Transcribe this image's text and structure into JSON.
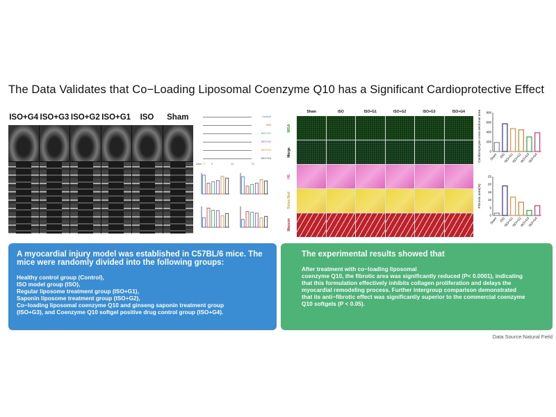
{
  "title": "The Data Validates that Co−Loading Liposomal Coenzyme Q10 has a Significant Cardioprotective Effect",
  "echo": {
    "labels": [
      "ISO+G4",
      "ISO+G3",
      "ISO+G2",
      "ISO+G1",
      "ISO",
      "Sham"
    ]
  },
  "timeline": {
    "rows": [
      {
        "label": "Control",
        "color": "#3a6fd8"
      },
      {
        "label": "ISO",
        "color": "#e03030"
      },
      {
        "label": "ISO+G1",
        "color": "#2aa060"
      },
      {
        "label": "ISO+G2",
        "color": "#8040c0"
      },
      {
        "label": "ISO+G3",
        "color": "#e08020"
      },
      {
        "label": "ISO+G4",
        "color": "#333333"
      }
    ],
    "days": [
      "Days",
      "-7",
      "0",
      "14",
      "21"
    ]
  },
  "histology": {
    "columns": [
      "Sham",
      "ISO",
      "ISO+G1",
      "ISO+G2",
      "ISO+G3",
      "ISO+G4"
    ],
    "rows": [
      {
        "label": "WGA",
        "color": "#2a9a2a",
        "cls": "wga"
      },
      {
        "label": "Merge",
        "color": "#111111",
        "cls": "merge"
      },
      {
        "label": "HE",
        "color": "#e040b0",
        "cls": "he"
      },
      {
        "label": "Sirius Red",
        "color": "#d0a020",
        "cls": "sr"
      },
      {
        "label": "Masson",
        "color": "#c02020",
        "cls": "ma"
      }
    ]
  },
  "chart_data": [
    {
      "type": "bar",
      "categories": [
        "Sham",
        "ISO",
        "ISO+G1",
        "ISO+G2",
        "ISO+G3",
        "ISO+G4"
      ],
      "values": [
        185,
        570,
        470,
        445,
        300,
        385
      ],
      "ylabel": "Cardiomyocyte cross-sectional area(μm²)",
      "ylim": [
        0,
        800
      ],
      "yticks": [
        "0",
        "200",
        "400",
        "600",
        "800"
      ],
      "colors": [
        "#888888",
        "#3030a0",
        "#e09040",
        "#d08030",
        "#30a040",
        "#e03070"
      ]
    },
    {
      "type": "bar",
      "categories": [
        "Sham",
        "ISO",
        "ISO+G1",
        "ISO+G2",
        "ISO+G3",
        "ISO+G4"
      ],
      "values": [
        1.5,
        19,
        11.8,
        8.5,
        3.2,
        6.3
      ],
      "ylabel": "Fibrosis area(%)",
      "ylim": [
        0,
        25
      ],
      "yticks": [
        "0",
        "5",
        "10",
        "15",
        "20",
        "25"
      ],
      "colors": [
        "#888888",
        "#3030a0",
        "#e09040",
        "#d08030",
        "#30a040",
        "#e03070"
      ]
    },
    {
      "type": "bar",
      "values": [
        90,
        52,
        58,
        64,
        84,
        76
      ],
      "ylim": [
        0,
        100
      ],
      "colors": [
        "#3a6fd8",
        "#e03030",
        "#2aa060",
        "#8040c0",
        "#e08020",
        "#333333"
      ]
    },
    {
      "type": "bar",
      "values": [
        58,
        26,
        32,
        36,
        48,
        44
      ],
      "ylim": [
        0,
        70
      ],
      "colors": [
        "#3a6fd8",
        "#e03030",
        "#2aa060",
        "#8040c0",
        "#e08020",
        "#333333"
      ]
    },
    {
      "type": "bar",
      "values": [
        2.3,
        4.6,
        4.1,
        4.0,
        2.8,
        3.3
      ],
      "ylim": [
        0,
        5
      ],
      "colors": [
        "#3a6fd8",
        "#e03030",
        "#2aa060",
        "#8040c0",
        "#e08020",
        "#333333"
      ]
    },
    {
      "type": "bar",
      "values": [
        1.5,
        3.0,
        2.9,
        2.7,
        1.8,
        2.1
      ],
      "ylim": [
        0,
        4
      ],
      "colors": [
        "#3a6fd8",
        "#e03030",
        "#2aa060",
        "#8040c0",
        "#e08020",
        "#333333"
      ]
    }
  ],
  "left_box": {
    "heading": "A myocardial injury model was established in C57BL/6 mice. The mice were randomly divided into the following groups:",
    "body": "Healthy control group (Control),\nISO model group (ISO),\nRegular liposome treatment group (ISO+G1),\nSaponin liposome treatment group (ISO+G2),\nCo−loading liposomal coenzyme Q10 and ginseng saponin treatment group\n(ISO+G3), and Coenzyme Q10 softgel positive drug control group (ISO+G4).",
    "color": "#3a8dd3"
  },
  "right_box": {
    "heading": "The experimental results showed that",
    "body": "After treatment with co−loading liposomal\ncoenzyme Q10, the fibrotic area was significantly reduced (P< 0.0001), indicating\nthat this formulation effectively inhibits collagen proliferation and delays the\nmyocardial remodeling process. Further intergroup comparison demonstrated\nthat its anti−fibrotic effect was significantly superior to the commercial coenzyme\nQ10 softgels (P < 0.05).",
    "color": "#4db377"
  },
  "source": "Data Source:Natural Field"
}
